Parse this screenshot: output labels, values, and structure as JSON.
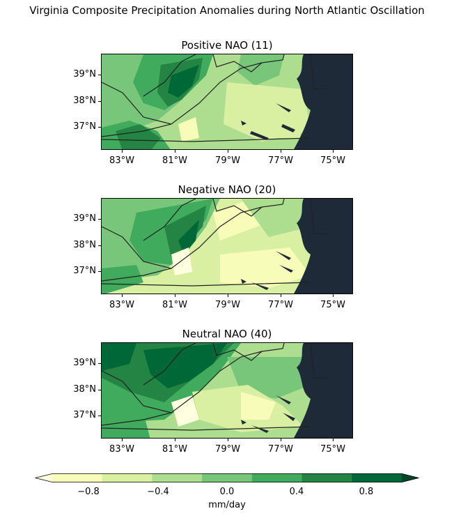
{
  "title": "Virginia Composite Precipitation Anomalies during North Atlantic Oscillation",
  "panels": [
    {
      "title": "Positive NAO (11)"
    },
    {
      "title": "Negative NAO (20)"
    },
    {
      "title": "Neutral NAO (40)"
    }
  ],
  "lat_labels": [
    "39°N",
    "38°N",
    "37°N"
  ],
  "lon_labels": [
    "83°W",
    "81°W",
    "79°W",
    "77°W",
    "75°W"
  ],
  "colorbar": {
    "label": "mm/day",
    "tick_labels": [
      "−0.8",
      "−0.4",
      "0.0",
      "0.4",
      "0.8"
    ],
    "colors": [
      "#ffffe0",
      "#f7fcb9",
      "#d9f0a3",
      "#addd8e",
      "#78c679",
      "#41ab5d",
      "#238443",
      "#006837",
      "#004529"
    ],
    "range": [
      -1.0,
      1.0
    ]
  },
  "ocean_color": "#1f2a38"
}
